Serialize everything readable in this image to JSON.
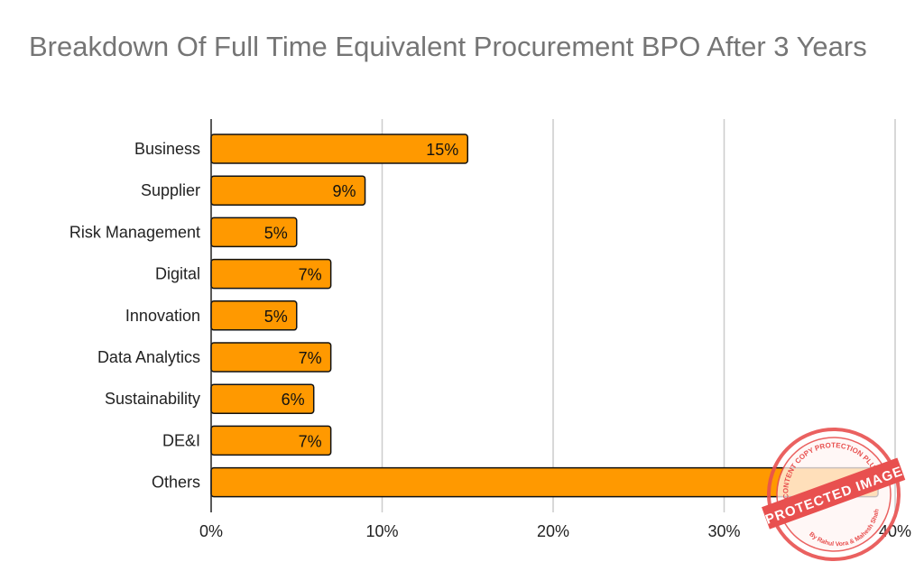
{
  "chart_data": {
    "type": "bar",
    "orientation": "horizontal",
    "title": "Breakdown Of Full Time Equivalent Procurement BPO After 3 Years",
    "categories": [
      "Business",
      "Supplier",
      "Risk Management",
      "Digital",
      "Innovation",
      "Data Analytics",
      "Sustainability",
      "DE&I",
      "Others"
    ],
    "values": [
      15,
      9,
      5,
      7,
      5,
      7,
      6,
      7,
      39
    ],
    "data_labels": [
      "15%",
      "9%",
      "5%",
      "7%",
      "5%",
      "7%",
      "6%",
      "7%",
      ""
    ],
    "x_ticks": [
      0,
      10,
      20,
      30,
      40
    ],
    "x_tick_labels": [
      "0%",
      "10%",
      "20%",
      "30%",
      "40%"
    ],
    "xlim": [
      0,
      40
    ],
    "xlabel": "",
    "ylabel": "",
    "grid": "vertical",
    "colors": {
      "bar": "#ff9900",
      "bar_stroke": "#111111",
      "grid": "#cccccc",
      "axis": "#222222"
    }
  },
  "watermark": {
    "main_text": "PROTECTED IMAGE",
    "top_text": "WP CONTENT COPY PROTECTION PLUGIN",
    "bottom_text": "By Rahul Vora & Mahesh Shah",
    "color": "#e8504f"
  }
}
